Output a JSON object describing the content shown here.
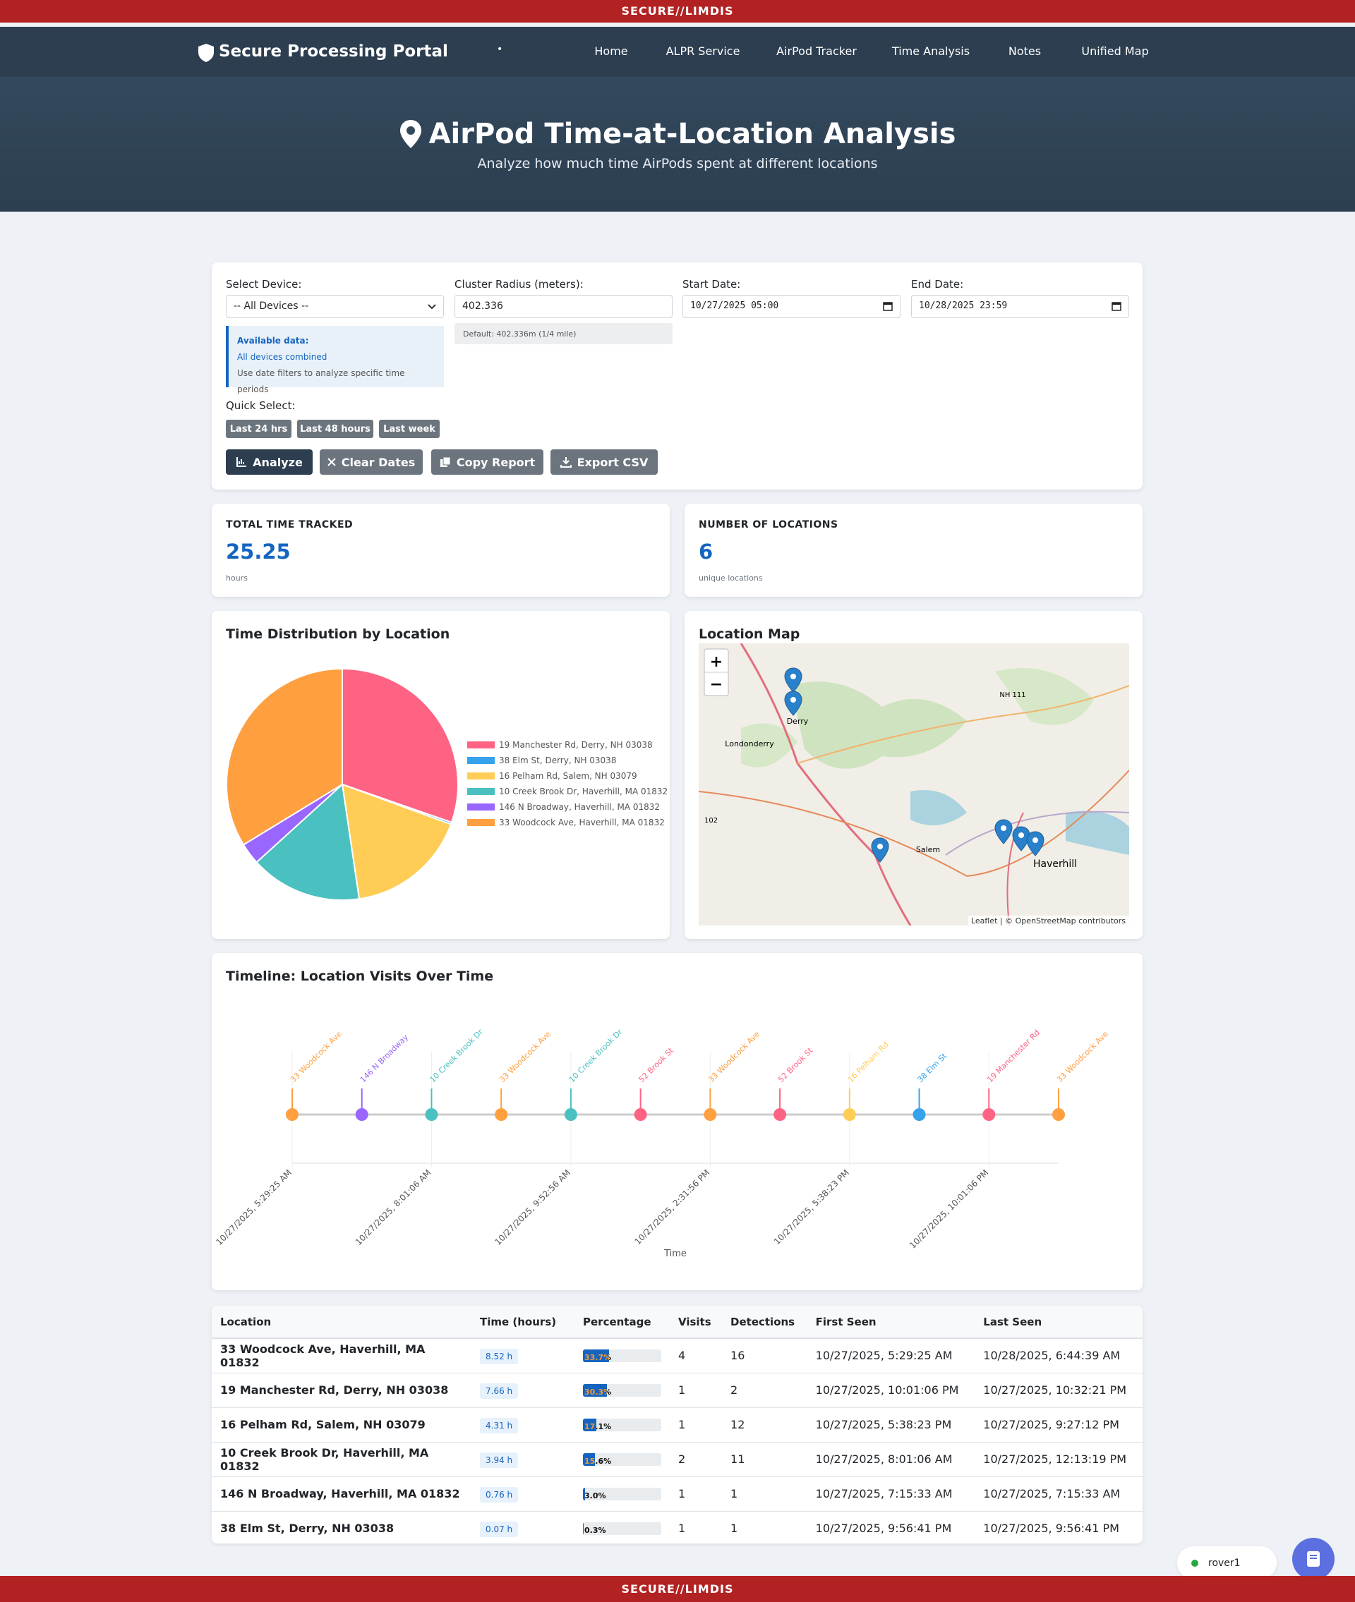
{
  "banner": {
    "top": "SECURE//LIMDIS",
    "bottom": "SECURE//LIMDIS"
  },
  "nav": {
    "brand": "Secure Processing Portal",
    "separator": "•",
    "links": [
      "Home",
      "ALPR Service",
      "AirPod Tracker",
      "Time Analysis",
      "Notes",
      "Unified Map"
    ]
  },
  "hero": {
    "title": "AirPod Time-at-Location Analysis",
    "subtitle": "Analyze how much time AirPods spent at different locations"
  },
  "form": {
    "device_label": "Select Device:",
    "device_value": "-- All Devices --",
    "radius_label": "Cluster Radius (meters):",
    "radius_value": "402.336",
    "radius_hint": "Default: 402.336m (1/4 mile)",
    "start_label": "Start Date:",
    "start_value": "10/27/2025 05:00",
    "end_label": "End Date:",
    "end_value": "10/28/2025 23:59",
    "info_title": "Available data:",
    "info_value": "All devices combined",
    "info_note": "Use date filters to analyze specific time periods",
    "quick_label": "Quick Select:",
    "quick_buttons": [
      "Last 24 hrs",
      "Last 48 hours",
      "Last week"
    ],
    "actions": [
      "Analyze",
      "Clear Dates",
      "Copy Report",
      "Export CSV"
    ]
  },
  "stats": [
    {
      "label": "TOTAL TIME TRACKED",
      "value": "25.25",
      "unit": "hours"
    },
    {
      "label": "NUMBER OF LOCATIONS",
      "value": "6",
      "unit": "unique locations"
    }
  ],
  "pie_chart": {
    "type": "pie",
    "title": "Time Distribution by Location",
    "categories": [
      "19 Manchester Rd, Derry, NH 03038",
      "38 Elm St, Derry, NH 03038",
      "16 Pelham Rd, Salem, NH 03079",
      "10 Creek Brook Dr, Haverhill, MA 01832",
      "146 N Broadway, Haverhill, MA 01832",
      "33 Woodcock Ave, Haverhill, MA 01832"
    ],
    "values": [
      7.66,
      0.07,
      4.31,
      3.94,
      0.76,
      8.52
    ],
    "colors": [
      "#ff6384",
      "#36a2eb",
      "#ffcd56",
      "#4bc0c0",
      "#9966ff",
      "#ff9f40"
    ],
    "legend": "right"
  },
  "map": {
    "title": "Location Map",
    "zoom_in": "+",
    "zoom_out": "−",
    "places": [
      "Derry",
      "Londonderry",
      "Salem",
      "Haverhill",
      "NH 111",
      "102"
    ],
    "attribution": "Leaflet | © OpenStreetMap contributors"
  },
  "timeline": {
    "type": "timeline",
    "title": "Timeline: Location Visits Over Time",
    "x_label": "Time",
    "categories": [
      "10/27/2025, 5:29:25 AM",
      null,
      "10/27/2025, 8:01:06 AM",
      null,
      "10/27/2025, 9:52:56 AM",
      null,
      "10/27/2025, 2:31:56 PM",
      null,
      "10/27/2025, 5:38:23 PM",
      null,
      "10/27/2025, 10:01:06 PM",
      null
    ],
    "events": [
      "33 Woodcock Ave",
      "146 N Broadway",
      "10 Creek Brook Dr",
      "33 Woodcock Ave",
      "10 Creek Brook Dr",
      "52 Brook St",
      "33 Woodcock Ave",
      "52 Brook St",
      "16 Pelham Rd",
      "38 Elm St",
      "19 Manchester Rd",
      "33 Woodcock Ave"
    ],
    "colors": [
      "#ff9f40",
      "#9966ff",
      "#4bc0c0",
      "#ff9f40",
      "#4bc0c0",
      "#ff6384",
      "#ff9f40",
      "#ff6384",
      "#ffcd56",
      "#36a2eb",
      "#ff6384",
      "#ff9f40"
    ]
  },
  "table": {
    "headers": [
      "Location",
      "Time (hours)",
      "Percentage",
      "Visits",
      "Detections",
      "First Seen",
      "Last Seen"
    ],
    "rows": [
      {
        "location": "33 Woodcock Ave, Haverhill, MA 01832",
        "time": "8.52 h",
        "percentage": 33.7,
        "percentage_label": "33.7%",
        "visits": "4",
        "detections": "16",
        "first": "10/27/2025, 5:29:25 AM",
        "last": "10/28/2025, 6:44:39 AM"
      },
      {
        "location": "19 Manchester Rd, Derry, NH 03038",
        "time": "7.66 h",
        "percentage": 30.3,
        "percentage_label": "30.3%",
        "visits": "1",
        "detections": "2",
        "first": "10/27/2025, 10:01:06 PM",
        "last": "10/27/2025, 10:32:21 PM"
      },
      {
        "location": "16 Pelham Rd, Salem, NH 03079",
        "time": "4.31 h",
        "percentage": 17.1,
        "percentage_label": "17.1%",
        "visits": "1",
        "detections": "12",
        "first": "10/27/2025, 5:38:23 PM",
        "last": "10/27/2025, 9:27:12 PM"
      },
      {
        "location": "10 Creek Brook Dr, Haverhill, MA 01832",
        "time": "3.94 h",
        "percentage": 15.6,
        "percentage_label": "15.6%",
        "visits": "2",
        "detections": "11",
        "first": "10/27/2025, 8:01:06 AM",
        "last": "10/27/2025, 12:13:19 PM"
      },
      {
        "location": "146 N Broadway, Haverhill, MA 01832",
        "time": "0.76 h",
        "percentage": 3.0,
        "percentage_label": "3.0%",
        "visits": "1",
        "detections": "1",
        "first": "10/27/2025, 7:15:33 AM",
        "last": "10/27/2025, 7:15:33 AM"
      },
      {
        "location": "38 Elm St, Derry, NH 03038",
        "time": "0.07 h",
        "percentage": 0.3,
        "percentage_label": "0.3%",
        "visits": "1",
        "detections": "1",
        "first": "10/27/2025, 9:56:41 PM",
        "last": "10/27/2025, 9:56:41 PM"
      }
    ]
  },
  "user": {
    "name": "rover1"
  }
}
